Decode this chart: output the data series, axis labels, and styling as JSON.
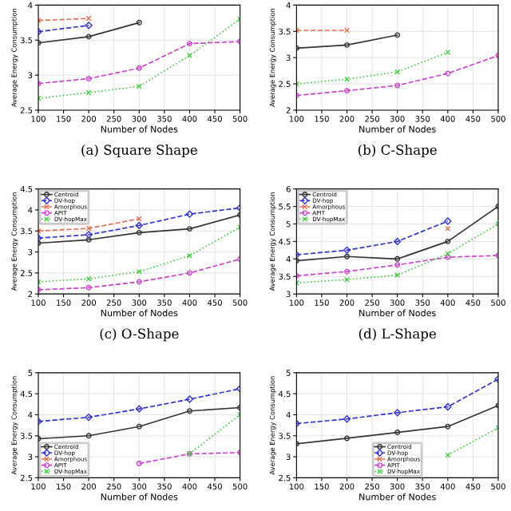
{
  "chart_data": [
    {
      "type": "line",
      "title": "(a) Square Shape",
      "xlabel": "Number of Nodes",
      "ylabel": "Average Energy Consumption",
      "x": [
        100,
        200,
        300,
        400,
        500
      ],
      "xlim": [
        100,
        500
      ],
      "xticks": [
        100,
        150,
        200,
        250,
        300,
        350,
        400,
        450,
        500
      ],
      "ylim": [
        2.5,
        4
      ],
      "yticks": [
        2.5,
        3,
        3.5,
        4
      ],
      "grid": true,
      "series": [
        {
          "color": "#333333",
          "marker": "circle",
          "line_style": "solid",
          "values": [
            3.46,
            3.55,
            3.75,
            null,
            null
          ]
        },
        {
          "color": "#3333cc",
          "marker": "diamond",
          "line_style": "dashed",
          "values": [
            3.62,
            3.71,
            null,
            null,
            null
          ]
        },
        {
          "color": "#e07050",
          "marker": "cross",
          "line_style": "dashed",
          "values": [
            3.78,
            3.81,
            null,
            null,
            null
          ]
        },
        {
          "color": "#cc44cc",
          "marker": "circle",
          "line_style": "dashed",
          "values": [
            2.88,
            2.95,
            3.1,
            3.45,
            3.48
          ]
        },
        {
          "color": "#44cc44",
          "marker": "cross",
          "line_style": "dotted",
          "values": [
            2.67,
            2.75,
            2.84,
            3.28,
            3.8
          ]
        }
      ]
    },
    {
      "type": "line",
      "title": "(b) C-Shape",
      "xlabel": "Number of Nodes",
      "ylabel": "Average Energy Consumption",
      "x": [
        100,
        200,
        300,
        400,
        500
      ],
      "xlim": [
        100,
        500
      ],
      "xticks": [
        100,
        150,
        200,
        250,
        300,
        350,
        400,
        450,
        500
      ],
      "ylim": [
        2,
        4
      ],
      "yticks": [
        2,
        2.5,
        3,
        3.5,
        4
      ],
      "grid": true,
      "series": [
        {
          "color": "#333333",
          "marker": "circle",
          "line_style": "solid",
          "values": [
            3.18,
            3.24,
            3.43,
            null,
            null
          ]
        },
        {
          "color": "#e07050",
          "marker": "cross",
          "line_style": "dashed",
          "values": [
            3.52,
            3.52,
            null,
            null,
            null
          ]
        },
        {
          "color": "#cc44cc",
          "marker": "circle",
          "line_style": "dashed",
          "values": [
            2.28,
            2.37,
            2.47,
            2.7,
            3.04
          ]
        },
        {
          "color": "#44cc44",
          "marker": "cross",
          "line_style": "dotted",
          "values": [
            2.5,
            2.59,
            2.73,
            3.1,
            null
          ]
        }
      ]
    },
    {
      "type": "line",
      "title": "(c) O-Shape",
      "xlabel": "Number of Nodes",
      "ylabel": "Average Energy Consumption",
      "x": [
        100,
        200,
        300,
        400,
        500
      ],
      "xlim": [
        100,
        500
      ],
      "xticks": [
        100,
        150,
        200,
        250,
        300,
        350,
        400,
        450,
        500
      ],
      "ylim": [
        2,
        4.5
      ],
      "yticks": [
        2,
        2.5,
        3,
        3.5,
        4,
        4.5
      ],
      "grid": true,
      "legend": "top left",
      "series": [
        {
          "name": "Centroid",
          "color": "#333333",
          "marker": "circle",
          "line_style": "solid",
          "values": [
            3.21,
            3.29,
            3.46,
            3.55,
            3.88
          ]
        },
        {
          "name": "DV-hop",
          "color": "#3333cc",
          "marker": "diamond",
          "line_style": "dashed",
          "values": [
            3.33,
            3.41,
            3.63,
            3.9,
            4.05
          ]
        },
        {
          "name": "Amorphous",
          "color": "#e07050",
          "marker": "cross",
          "line_style": "dashed",
          "values": [
            3.5,
            3.56,
            3.79,
            null,
            null
          ]
        },
        {
          "name": "APIT",
          "color": "#cc44cc",
          "marker": "circle",
          "line_style": "dashed",
          "values": [
            2.1,
            2.15,
            2.29,
            2.5,
            2.83
          ]
        },
        {
          "name": "DV-hopMax",
          "color": "#44cc44",
          "marker": "cross",
          "line_style": "dotted",
          "values": [
            2.29,
            2.36,
            2.53,
            2.91,
            3.59
          ]
        }
      ]
    },
    {
      "type": "line",
      "title": "(d) L-Shape",
      "xlabel": "Number of Nodes",
      "ylabel": "Average Energy Consumption",
      "x": [
        100,
        200,
        300,
        400,
        500
      ],
      "xlim": [
        100,
        500
      ],
      "xticks": [
        100,
        150,
        200,
        250,
        300,
        350,
        400,
        450,
        500
      ],
      "ylim": [
        3,
        6
      ],
      "yticks": [
        3,
        3.5,
        4,
        4.5,
        5,
        5.5,
        6
      ],
      "grid": true,
      "legend": "top left",
      "series": [
        {
          "name": "Centroid",
          "color": "#333333",
          "marker": "circle",
          "line_style": "solid",
          "values": [
            3.95,
            4.07,
            4.0,
            4.5,
            5.5
          ]
        },
        {
          "name": "DV-hop",
          "color": "#3333cc",
          "marker": "diamond",
          "line_style": "dashed",
          "values": [
            4.12,
            4.25,
            4.5,
            5.08,
            null
          ]
        },
        {
          "name": "Amorphous",
          "color": "#e07050",
          "marker": "cross",
          "line_style": "dashed",
          "values": [
            null,
            null,
            null,
            4.87,
            null
          ]
        },
        {
          "name": "APIT",
          "color": "#cc44cc",
          "marker": "circle",
          "line_style": "dashed",
          "values": [
            3.52,
            3.64,
            3.83,
            4.05,
            4.1
          ]
        },
        {
          "name": "DV-hopMax",
          "color": "#44cc44",
          "marker": "cross",
          "line_style": "dotted",
          "values": [
            3.32,
            3.41,
            3.54,
            4.15,
            5.0
          ]
        }
      ]
    },
    {
      "type": "line",
      "xlabel": "Number of Nodes",
      "ylabel": "Average Energy Consumption",
      "x": [
        100,
        200,
        300,
        400,
        500
      ],
      "xlim": [
        100,
        500
      ],
      "xticks": [
        100,
        150,
        200,
        250,
        300,
        350,
        400,
        450,
        500
      ],
      "ylim": [
        2.5,
        5
      ],
      "yticks": [
        2.5,
        3,
        3.5,
        4,
        4.5,
        5
      ],
      "grid": true,
      "legend": "bottom left",
      "series": [
        {
          "name": "Centroid",
          "color": "#333333",
          "marker": "circle",
          "line_style": "solid",
          "values": [
            3.43,
            3.5,
            3.72,
            4.09,
            4.17
          ]
        },
        {
          "name": "DV-hop",
          "color": "#3333cc",
          "marker": "diamond",
          "line_style": "dashed",
          "values": [
            3.84,
            3.94,
            4.14,
            4.37,
            4.62
          ]
        },
        {
          "name": "Amorphous",
          "color": "#e07050",
          "marker": "cross",
          "line_style": "dashed",
          "values": [
            null,
            null,
            null,
            null,
            null
          ]
        },
        {
          "name": "APIT",
          "color": "#cc44cc",
          "marker": "circle",
          "line_style": "dashed",
          "values": [
            null,
            null,
            2.84,
            3.07,
            3.1
          ]
        },
        {
          "name": "DV-hopMax",
          "color": "#44cc44",
          "marker": "cross",
          "line_style": "dotted",
          "values": [
            null,
            null,
            null,
            3.07,
            4.0
          ]
        }
      ]
    },
    {
      "type": "line",
      "xlabel": "Number of Nodes",
      "ylabel": "Average Energy Consumption",
      "x": [
        100,
        200,
        300,
        400,
        500
      ],
      "xlim": [
        100,
        500
      ],
      "xticks": [
        100,
        150,
        200,
        250,
        300,
        350,
        400,
        450,
        500
      ],
      "ylim": [
        2.5,
        5
      ],
      "yticks": [
        2.5,
        3,
        3.5,
        4,
        4.5,
        5
      ],
      "grid": true,
      "legend": "bottom",
      "series": [
        {
          "name": "Centroid",
          "color": "#333333",
          "marker": "circle",
          "line_style": "solid",
          "values": [
            3.31,
            3.44,
            3.58,
            3.72,
            4.22
          ]
        },
        {
          "name": "DV-hop",
          "color": "#3333cc",
          "marker": "diamond",
          "line_style": "dashed",
          "values": [
            3.79,
            3.9,
            4.05,
            4.19,
            4.85
          ]
        },
        {
          "name": "Amorphous",
          "color": "#e07050",
          "marker": "cross",
          "line_style": "dashed",
          "values": [
            null,
            null,
            null,
            null,
            null
          ]
        },
        {
          "name": "APIT",
          "color": "#cc44cc",
          "marker": "circle",
          "line_style": "dashed",
          "values": [
            null,
            null,
            null,
            null,
            null
          ]
        },
        {
          "name": "DV-hopMax",
          "color": "#44cc44",
          "marker": "cross",
          "line_style": "dotted",
          "values": [
            null,
            null,
            null,
            3.04,
            3.69
          ]
        }
      ]
    }
  ]
}
